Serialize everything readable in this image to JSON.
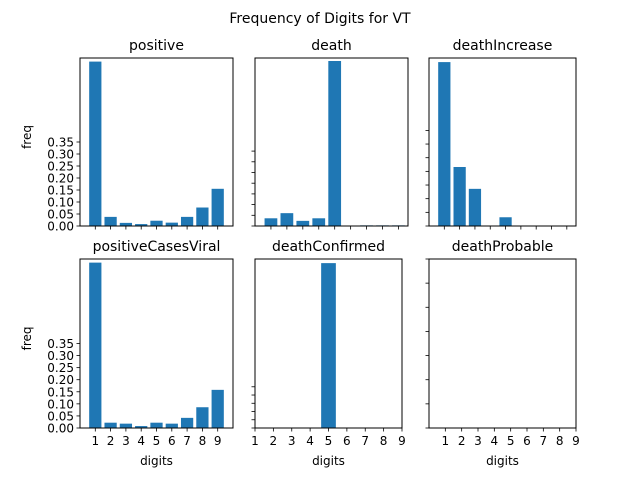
{
  "figure": {
    "suptitle": "Frequency of Digits for VT"
  },
  "colors": {
    "bar": "#1f77b4",
    "axis": "#000000",
    "background": "#ffffff"
  },
  "chart_data": [
    {
      "type": "bar",
      "title": "positive",
      "xlabel": "",
      "ylabel": "freq",
      "categories": [
        "1",
        "2",
        "3",
        "4",
        "5",
        "6",
        "7",
        "8",
        "9"
      ],
      "values": [
        0.685,
        0.038,
        0.013,
        0.008,
        0.022,
        0.014,
        0.038,
        0.077,
        0.155
      ],
      "ylim": [
        0,
        0.7
      ],
      "xlim": [
        0,
        10
      ],
      "yticks": [
        0.0,
        0.05,
        0.1,
        0.15,
        0.2,
        0.25,
        0.3,
        0.35
      ],
      "ytick_labels": [
        "0.00",
        "0.05",
        "0.10",
        "0.15",
        "0.20",
        "0.25",
        "0.30",
        "0.35"
      ],
      "xticks": [
        1,
        2,
        3,
        4,
        5,
        6,
        7,
        8,
        9
      ],
      "xtick_labels": []
    },
    {
      "type": "bar",
      "title": "death",
      "xlabel": "",
      "ylabel": "",
      "categories": [
        "1",
        "2",
        "3",
        "4",
        "5",
        "6",
        "7",
        "8",
        "9"
      ],
      "values": [
        0.036,
        0.06,
        0.024,
        0.036,
        0.771,
        0.002,
        0.003,
        0.003,
        0.003
      ],
      "ylim": [
        0,
        0.785
      ],
      "xlim": [
        0,
        9.6
      ],
      "yticks": [
        0.0,
        0.05,
        0.1,
        0.15,
        0.2,
        0.25,
        0.3,
        0.35
      ],
      "ytick_labels": [],
      "xticks": [
        1,
        2,
        3,
        4,
        5,
        6,
        7,
        8,
        9
      ],
      "xtick_labels": []
    },
    {
      "type": "bar",
      "title": "deathIncrease",
      "xlabel": "",
      "ylabel": "",
      "categories": [
        "1",
        "2",
        "3",
        "4",
        "5",
        "6",
        "7",
        "8",
        "9"
      ],
      "values": [
        0.6,
        0.216,
        0.136,
        0.0,
        0.032,
        0.0,
        0.0,
        0.0,
        0.0
      ],
      "ylim": [
        0,
        0.615
      ],
      "xlim": [
        0,
        9.6
      ],
      "yticks": [
        0.0,
        0.05,
        0.1,
        0.15,
        0.2,
        0.25,
        0.3,
        0.35
      ],
      "ytick_labels": [],
      "xticks": [
        1,
        2,
        3,
        4,
        5,
        6,
        7,
        8,
        9
      ],
      "xtick_labels": []
    },
    {
      "type": "bar",
      "title": "positiveCasesViral",
      "xlabel": "digits",
      "ylabel": "freq",
      "categories": [
        "1",
        "2",
        "3",
        "4",
        "5",
        "6",
        "7",
        "8",
        "9"
      ],
      "values": [
        0.685,
        0.022,
        0.018,
        0.008,
        0.022,
        0.018,
        0.042,
        0.086,
        0.158
      ],
      "ylim": [
        0,
        0.7
      ],
      "xlim": [
        0,
        10
      ],
      "yticks": [
        0.0,
        0.05,
        0.1,
        0.15,
        0.2,
        0.25,
        0.3,
        0.35
      ],
      "ytick_labels": [
        "0.00",
        "0.05",
        "0.10",
        "0.15",
        "0.20",
        "0.25",
        "0.30",
        "0.35"
      ],
      "xticks": [
        1,
        2,
        3,
        4,
        5,
        6,
        7,
        8,
        9
      ],
      "xtick_labels": [
        "1",
        "2",
        "3",
        "4",
        "5",
        "6",
        "7",
        "8",
        "9"
      ]
    },
    {
      "type": "bar",
      "title": "deathConfirmed",
      "xlabel": "digits",
      "ylabel": "",
      "categories": [
        "1",
        "2",
        "3",
        "4",
        "5",
        "6",
        "7",
        "8",
        "9"
      ],
      "values": [
        0,
        0,
        0,
        0,
        1.0,
        0,
        0,
        0,
        0
      ],
      "ylim": [
        0,
        1.025
      ],
      "xlim": [
        1,
        9
      ],
      "yticks": [
        0.0,
        0.05,
        0.1,
        0.15,
        0.2,
        0.25
      ],
      "ytick_labels": [],
      "xticks": [
        1,
        2,
        3,
        4,
        5,
        6,
        7,
        8,
        9
      ],
      "xtick_labels": [
        "1",
        "2",
        "3",
        "4",
        "5",
        "6",
        "7",
        "8",
        "9"
      ]
    },
    {
      "type": "bar",
      "title": "deathProbable",
      "xlabel": "digits",
      "ylabel": "",
      "categories": [
        "1",
        "2",
        "3",
        "4",
        "5",
        "6",
        "7",
        "8",
        "9"
      ],
      "values": [
        0,
        0,
        0,
        0,
        0,
        0,
        0,
        0,
        0
      ],
      "ylim": [
        0,
        0.7
      ],
      "xlim": [
        0,
        9
      ],
      "yticks": [
        0.0,
        0.1,
        0.2,
        0.3,
        0.4,
        0.5,
        0.6,
        0.7
      ],
      "ytick_labels": [],
      "xticks": [
        1,
        2,
        3,
        4,
        5,
        6,
        7,
        8,
        9
      ],
      "xtick_labels": [
        "1",
        "2",
        "3",
        "4",
        "5",
        "6",
        "7",
        "8",
        "9"
      ]
    }
  ]
}
